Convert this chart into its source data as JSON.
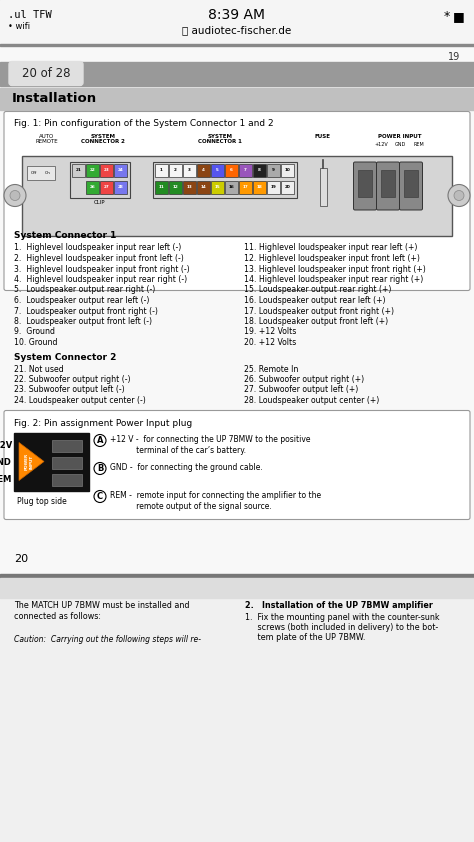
{
  "title_bar_text": "8:39 AM",
  "subtitle_bar_text": "audiotec-fischer.de",
  "status_left": "•••| TFW",
  "page_num_top": "19",
  "page_indicator": "20 of 28",
  "section_title": "Installation",
  "fig1_title": "Fig. 1: Pin configuration of the System Connector 1 and 2",
  "fig2_title": "Fig. 2: Pin assignment Power Input plug",
  "connector1_colors_top": [
    "#f5f5f5",
    "#f5f5f5",
    "#f5f5f5",
    "#8B4513",
    "#5555ee",
    "#ff6600",
    "#9955bb",
    "#222222",
    "#aaaaaa",
    "#eeeeee"
  ],
  "connector1_colors_bot": [
    "#228B22",
    "#228B22",
    "#8B4513",
    "#8B4513",
    "#cccc00",
    "#aaaaaa",
    "#ff9900",
    "#ff9900",
    "#eeeeee",
    "#eeeeee"
  ],
  "connector2_colors_top": [
    "#bbbbbb",
    "#228B22",
    "#ee5555",
    "#8888ee"
  ],
  "connector2_colors_bot": [
    "#228B22",
    "#ee5555",
    "#8888ee"
  ],
  "labels_col1": [
    "1.  Highlevel loudspeaker input rear left (-)",
    "2.  Highlevel loudspeaker input front left (-)",
    "3.  Highlevel loudspeaker input front right (-)",
    "4.  Highlevel loudspeaker input rear right (-)",
    "5.  Loudspeaker output rear right (-)",
    "6.  Loudspeaker output rear left (-)",
    "7.  Loudspeaker output front right (-)",
    "8.  Loudspeaker output front left (-)",
    "9.  Ground",
    "10. Ground"
  ],
  "labels_col2": [
    "11. Highlevel loudspeaker input rear left (+)",
    "12. Highlevel loudspeaker input front left (+)",
    "13. Highlevel loudspeaker input front right (+)",
    "14. Highlevel loudspeaker input rear right (+)",
    "15. Loudspeaker output rear right (+)",
    "16. Loudspeaker output rear left (+)",
    "17. Loudspeaker output front right (+)",
    "18. Loudspeaker output front left (+)",
    "19. +12 Volts",
    "20. +12 Volts"
  ],
  "labels_sc2_col1": [
    "21. Not used",
    "22. Subwoofer output right (-)",
    "23. Subwoofer output left (-)",
    "24. Loudspeaker output center (-)"
  ],
  "labels_sc2_col2": [
    "25. Remote In",
    "26. Subwoofer output right (+)",
    "27. Subwoofer output left (+)",
    "28. Loudspeaker output center (+)"
  ],
  "fig2_desc_A": "+12 V -  for connecting the UP 7BMW to the positive\n           terminal of the car’s battery.",
  "fig2_desc_B": "GND -  for connecting the ground cable.",
  "fig2_desc_C": "REM -  remote input for connecting the amplifier to the\n           remote output of the signal source.",
  "plug_top_side": "Plug top side",
  "bottom_text_left": "The MATCH UP 7BMW must be installed and\nconnected as follows:",
  "bottom_text_right_title": "2.   Installation of the UP 7BMW amplifier",
  "bottom_text_right_body": "1.  Fix the mounting panel with the counter-sunk\n     screws (both included in delivery) to the bot-\n     tem plate of the UP 7BMW.",
  "bottom_caution": "Caution:  Carrying out the following steps will re-",
  "page_num_bottom": "20",
  "bg_color": "#b0b0b0",
  "page_bg": "#ffffff",
  "status_bg": "#f5f5f5",
  "gray_bar_color": "#999999",
  "inst_bar_color": "#c0c0c0"
}
